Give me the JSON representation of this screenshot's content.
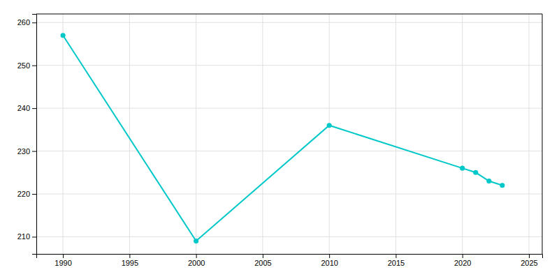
{
  "chart_data": {
    "type": "line",
    "x": [
      1990,
      2000,
      2010,
      2020,
      2021,
      2022,
      2023
    ],
    "values": [
      257,
      209,
      236,
      226,
      225,
      223,
      222
    ],
    "color": "#00C8C8",
    "marker": "circle",
    "xlim": [
      1988,
      2026
    ],
    "ylim": [
      206,
      262
    ],
    "xticks": [
      1990,
      1995,
      2000,
      2005,
      2010,
      2015,
      2020,
      2025
    ],
    "yticks": [
      210,
      220,
      230,
      240,
      250,
      260
    ],
    "grid": true
  }
}
